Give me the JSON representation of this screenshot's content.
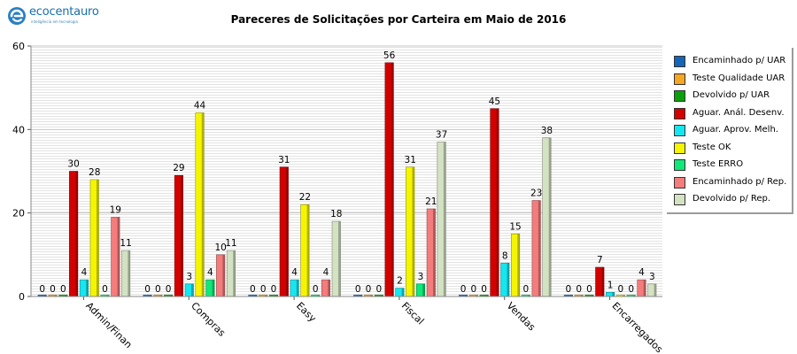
{
  "logo": {
    "name": "ecocentauro",
    "tagline": "inteligência em tecnologia"
  },
  "chart_data": {
    "type": "bar",
    "title": "Pareceres de Solicitações por Carteira em Maio de 2016",
    "xlabel": "",
    "ylabel": "",
    "ylim": [
      0,
      60
    ],
    "yticks": [
      0,
      20,
      40,
      60
    ],
    "grid": true,
    "legend_position": "right",
    "categories": [
      "Admin/Finan",
      "Compras",
      "Easy",
      "Fiscal",
      "Vendas",
      "Encarregados"
    ],
    "series": [
      {
        "name": "Encaminhado p/ UAR",
        "color": "#1565b8",
        "values": [
          0,
          0,
          0,
          0,
          0,
          0
        ]
      },
      {
        "name": "Teste Qualidade UAR",
        "color": "#f5a623",
        "values": [
          0,
          0,
          0,
          0,
          0,
          0
        ]
      },
      {
        "name": "Devolvido p/ UAR",
        "color": "#0aa00a",
        "values": [
          0,
          0,
          0,
          0,
          0,
          0
        ]
      },
      {
        "name": "Aguar. Anál. Desenv.",
        "color": "#d40000",
        "values": [
          30,
          29,
          31,
          56,
          45,
          7
        ]
      },
      {
        "name": "Aguar. Aprov. Melh.",
        "color": "#16e6f0",
        "values": [
          4,
          3,
          4,
          2,
          8,
          1
        ]
      },
      {
        "name": "Teste OK",
        "color": "#f5f500",
        "values": [
          28,
          44,
          22,
          31,
          15,
          0
        ]
      },
      {
        "name": "Teste ERRO",
        "color": "#10e878",
        "values": [
          0,
          4,
          0,
          3,
          0,
          0
        ]
      },
      {
        "name": "Encaminhado p/ Rep.",
        "color": "#f47c7c",
        "values": [
          19,
          10,
          4,
          21,
          23,
          4
        ]
      },
      {
        "name": "Devolvido p/ Rep.",
        "color": "#d4e2c4",
        "values": [
          11,
          11,
          18,
          37,
          38,
          3
        ]
      }
    ]
  }
}
